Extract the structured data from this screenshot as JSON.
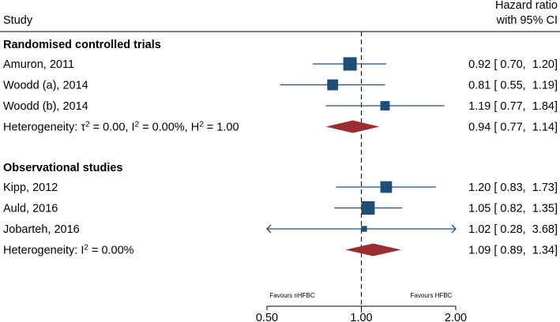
{
  "chart_data": {
    "type": "forest",
    "scale": "log",
    "xlim": [
      0.5,
      2.0
    ],
    "xticks": [
      {
        "value": 0.5,
        "label": "0.50"
      },
      {
        "value": 1.0,
        "label": "1.00"
      },
      {
        "value": 2.0,
        "label": "2.00"
      }
    ],
    "reference_line": 1.0,
    "header": {
      "study": "Study",
      "effect_line1": "Hazard ratio",
      "effect_line2": "with 95% CI"
    },
    "favours_left": "Favours nHFBC",
    "favours_right": "Favours HFBC",
    "groups": [
      {
        "name": "Randomised controlled trials",
        "studies": [
          {
            "label": "Amuron, 2011",
            "hr": 0.92,
            "lo": 0.7,
            "hi": 1.2,
            "text": "0.92 [ 0.70,  1.20]",
            "weight": 1.0
          },
          {
            "label": "Woodd (a), 2014",
            "hr": 0.81,
            "lo": 0.55,
            "hi": 1.19,
            "text": "0.81 [ 0.55,  1.19]",
            "weight": 0.6
          },
          {
            "label": "Woodd (b), 2014",
            "hr": 1.19,
            "lo": 0.77,
            "hi": 1.84,
            "text": "1.19 [ 0.77,  1.84]",
            "weight": 0.4
          }
        ],
        "summary": {
          "label": "Heterogeneity: τ² = 0.00, I² = 0.00%, H² = 1.00",
          "hr": 0.94,
          "lo": 0.77,
          "hi": 1.14,
          "text": "0.94 [ 0.77,  1.14]"
        }
      },
      {
        "name": "Observational studies",
        "studies": [
          {
            "label": "Kipp, 2012",
            "hr": 1.2,
            "lo": 0.83,
            "hi": 1.73,
            "text": "1.20 [ 0.83,  1.73]",
            "weight": 0.7
          },
          {
            "label": "Auld, 2016",
            "hr": 1.05,
            "lo": 0.82,
            "hi": 1.35,
            "text": "1.05 [ 0.82,  1.35]",
            "weight": 1.0
          },
          {
            "label": "Jobarteh, 2016",
            "hr": 1.02,
            "lo": 0.28,
            "hi": 3.68,
            "text": "1.02 [ 0.28,  3.68]",
            "weight": 0.1
          }
        ],
        "summary": {
          "label": "Heterogeneity: I² = 0.00%",
          "hr": 1.09,
          "lo": 0.89,
          "hi": 1.34,
          "text": "1.09 [ 0.89,  1.34]"
        }
      }
    ],
    "colors": {
      "marker": "#1f4e79",
      "diamond": "#9b2d30",
      "text": "#000000"
    }
  }
}
